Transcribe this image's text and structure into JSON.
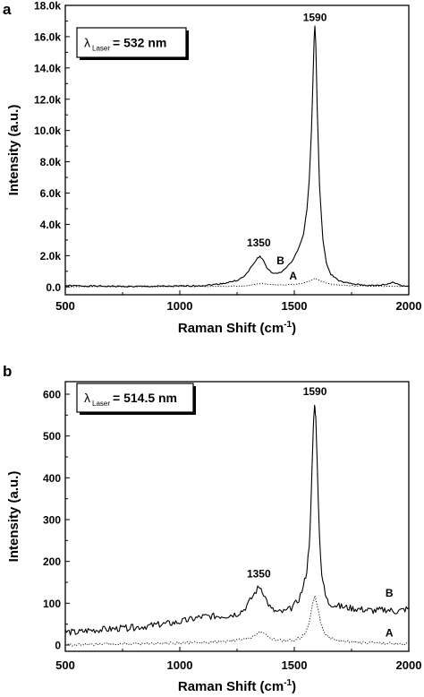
{
  "chart_data": [
    {
      "panel_label": "a",
      "type": "line",
      "legend_box": {
        "symbol": "λ",
        "subscript": "Laser",
        "text": "= 532 nm"
      },
      "xlabel": "Raman Shift (cm",
      "xlabel_sup": "-1",
      "xlabel_close": ")",
      "ylabel": "Intensity (a.u.)",
      "xlim": [
        500,
        2000
      ],
      "ylim": [
        -500,
        18000
      ],
      "x_ticks": [
        500,
        1000,
        1500,
        2000
      ],
      "x_tick_labels": [
        "500",
        "1000",
        "1500",
        "2000"
      ],
      "y_ticks": [
        0,
        2000,
        4000,
        6000,
        8000,
        10000,
        12000,
        14000,
        16000,
        18000
      ],
      "y_tick_labels": [
        "0.0",
        "2.0k",
        "4.0k",
        "6.0k",
        "8.0k",
        "10.0k",
        "12.0k",
        "14.0k",
        "16.0k",
        "18.0k"
      ],
      "annotations": [
        {
          "text": "1350",
          "x": 1345,
          "y": 2600
        },
        {
          "text": "1590",
          "x": 1590,
          "y": 17000
        },
        {
          "text": "B",
          "x": 1440,
          "y": 1450
        },
        {
          "text": "A",
          "x": 1495,
          "y": 480
        }
      ],
      "series": [
        {
          "name": "B",
          "style": "solid",
          "x": [
            500,
            600,
            700,
            800,
            900,
            1000,
            1100,
            1150,
            1200,
            1250,
            1280,
            1300,
            1320,
            1340,
            1350,
            1365,
            1380,
            1400,
            1420,
            1440,
            1460,
            1480,
            1500,
            1520,
            1540,
            1555,
            1565,
            1575,
            1582,
            1587,
            1590,
            1594,
            1600,
            1610,
            1625,
            1640,
            1660,
            1700,
            1750,
            1800,
            1850,
            1900,
            1930,
            1950,
            1970,
            2000
          ],
          "y": [
            80,
            60,
            40,
            30,
            40,
            50,
            90,
            150,
            250,
            420,
            650,
            1000,
            1450,
            1850,
            1950,
            1700,
            1250,
            900,
            850,
            950,
            1150,
            1450,
            1900,
            2500,
            3400,
            4900,
            6800,
            10000,
            13500,
            16000,
            16700,
            15500,
            11500,
            6500,
            3000,
            1500,
            800,
            350,
            200,
            120,
            80,
            150,
            300,
            200,
            80,
            40
          ]
        },
        {
          "name": "A",
          "style": "dotted",
          "x": [
            500,
            700,
            900,
            1100,
            1200,
            1300,
            1340,
            1360,
            1400,
            1450,
            1500,
            1540,
            1570,
            1590,
            1610,
            1650,
            1700,
            1800,
            1900,
            2000
          ],
          "y": [
            20,
            20,
            20,
            30,
            40,
            80,
            200,
            220,
            150,
            120,
            150,
            250,
            400,
            550,
            400,
            200,
            100,
            60,
            40,
            30
          ]
        }
      ]
    },
    {
      "panel_label": "b",
      "type": "line",
      "legend_box": {
        "symbol": "λ",
        "subscript": "Laser",
        "text": "= 514.5 nm"
      },
      "xlabel": "Raman Shift (cm",
      "xlabel_sup": "-1",
      "xlabel_close": ")",
      "ylabel": "Intensity (a.u.)",
      "xlim": [
        500,
        2000
      ],
      "ylim": [
        -15,
        630
      ],
      "x_ticks": [
        500,
        1000,
        1500,
        2000
      ],
      "x_tick_labels": [
        "500",
        "1000",
        "1500",
        "2000"
      ],
      "y_ticks": [
        0,
        100,
        200,
        300,
        400,
        500,
        600
      ],
      "y_tick_labels": [
        "0",
        "100",
        "200",
        "300",
        "400",
        "500",
        "600"
      ],
      "annotations": [
        {
          "text": "1350",
          "x": 1345,
          "y": 162
        },
        {
          "text": "1590",
          "x": 1590,
          "y": 598
        },
        {
          "text": "B",
          "x": 1915,
          "y": 116
        },
        {
          "text": "A",
          "x": 1915,
          "y": 20
        }
      ],
      "series": [
        {
          "name": "B",
          "style": "solid",
          "x": [
            500,
            550,
            600,
            700,
            800,
            900,
            1000,
            1100,
            1200,
            1250,
            1280,
            1300,
            1320,
            1340,
            1350,
            1360,
            1380,
            1400,
            1430,
            1460,
            1480,
            1500,
            1520,
            1540,
            1555,
            1565,
            1572,
            1578,
            1583,
            1587,
            1590,
            1594,
            1600,
            1610,
            1620,
            1635,
            1650,
            1700,
            1750,
            1800,
            1850,
            1900,
            1950,
            2000
          ],
          "y": [
            32,
            30,
            35,
            38,
            42,
            48,
            55,
            68,
            70,
            75,
            85,
            100,
            118,
            135,
            140,
            132,
            105,
            85,
            78,
            80,
            85,
            95,
            110,
            140,
            180,
            240,
            320,
            430,
            520,
            565,
            575,
            540,
            430,
            260,
            170,
            120,
            100,
            92,
            88,
            85,
            82,
            85,
            80,
            88
          ]
        },
        {
          "name": "A",
          "style": "dotted",
          "x": [
            500,
            700,
            900,
            1100,
            1200,
            1300,
            1330,
            1350,
            1370,
            1400,
            1450,
            1500,
            1530,
            1550,
            1565,
            1575,
            1585,
            1590,
            1600,
            1615,
            1630,
            1650,
            1700,
            1800,
            1900,
            2000
          ],
          "y": [
            0,
            2,
            4,
            6,
            8,
            15,
            25,
            32,
            25,
            15,
            10,
            12,
            18,
            30,
            55,
            85,
            110,
            115,
            95,
            55,
            30,
            18,
            10,
            6,
            4,
            3
          ]
        }
      ]
    }
  ]
}
